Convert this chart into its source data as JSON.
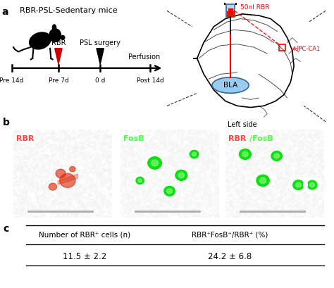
{
  "title": "RBR-PSL-Sedentary mice",
  "panel_a_label": "a",
  "panel_b_label": "b",
  "panel_c_label": "c",
  "timeline_labels": [
    "Pre 14d",
    "Pre 7d",
    "0 d",
    "Post 14d"
  ],
  "img_labels_b": [
    "RBR",
    "FosB",
    "RBR/FosB"
  ],
  "table_headers": [
    "Number of RBR⁺ cells (n)",
    "RBR⁺FosB⁺/RBR⁺ (%)"
  ],
  "table_values": [
    "11.5 ± 2.2",
    "24.2 ± 6.8"
  ],
  "bg_color": "#ffffff",
  "rbr_arrow_color": "#cc0000",
  "red_panel_bg": "#3d0000",
  "green_panel_bg": "#002200",
  "merge_panel_bg": "#1a1a00",
  "cell_red": "#dd2200",
  "cell_green": "#00dd00",
  "scale_bar_color": "#aaaaaa",
  "arrow_white": "#ffffff",
  "circle_white": "#ffffff"
}
